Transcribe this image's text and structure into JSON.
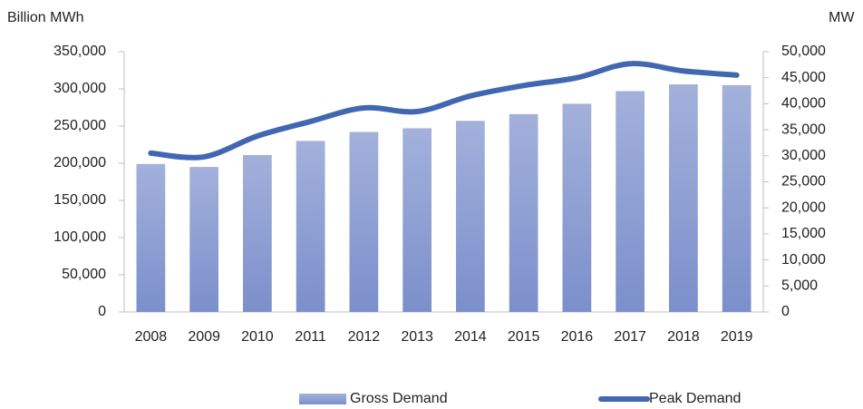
{
  "chart_data": {
    "type": "bar_line",
    "y_label": "Billion MWh",
    "y2_label": "MW",
    "categories": [
      "2008",
      "2009",
      "2010",
      "2011",
      "2012",
      "2013",
      "2014",
      "2015",
      "2016",
      "2017",
      "2018",
      "2019"
    ],
    "series": [
      {
        "name": "Gross Demand",
        "type": "bar",
        "color": "#7b8fcb",
        "values": [
          199000,
          195000,
          211000,
          230000,
          242000,
          247000,
          257000,
          266000,
          280000,
          297000,
          306000,
          305000
        ]
      },
      {
        "name": "Peak Demand",
        "type": "line",
        "axis": "y2",
        "color": "#4267b2",
        "values": [
          30500,
          29800,
          33800,
          36600,
          39200,
          38500,
          41500,
          43500,
          45000,
          47700,
          46300,
          45500
        ]
      }
    ],
    "ylim": [
      0,
      350000
    ],
    "yticks": [
      0,
      {
        "value": 50000,
        "label": "50,000"
      },
      {
        "value": 100000,
        "label": "100,000"
      },
      {
        "value": 150000,
        "label": "150,000"
      },
      {
        "value": 200000,
        "label": "200,000"
      },
      {
        "value": 250000,
        "label": "250,000"
      },
      {
        "value": 300000,
        "label": "300,000"
      },
      {
        "value": 350000,
        "label": "350,000"
      }
    ],
    "y2lim": [
      0,
      50000
    ],
    "y2ticks": [
      0,
      {
        "value": 5000,
        "label": "5,000"
      },
      {
        "value": 10000,
        "label": "10,000"
      },
      {
        "value": 15000,
        "label": "15,000"
      },
      {
        "value": 20000,
        "label": "20,000"
      },
      {
        "value": 25000,
        "label": "25,000"
      },
      {
        "value": 30000,
        "label": "30,000"
      },
      {
        "value": 35000,
        "label": "35,000"
      },
      {
        "value": 40000,
        "label": "40,000"
      },
      {
        "value": 45000,
        "label": "45,000"
      },
      {
        "value": 50000,
        "label": "50,000"
      }
    ],
    "legend": "bottom",
    "grid": false
  }
}
